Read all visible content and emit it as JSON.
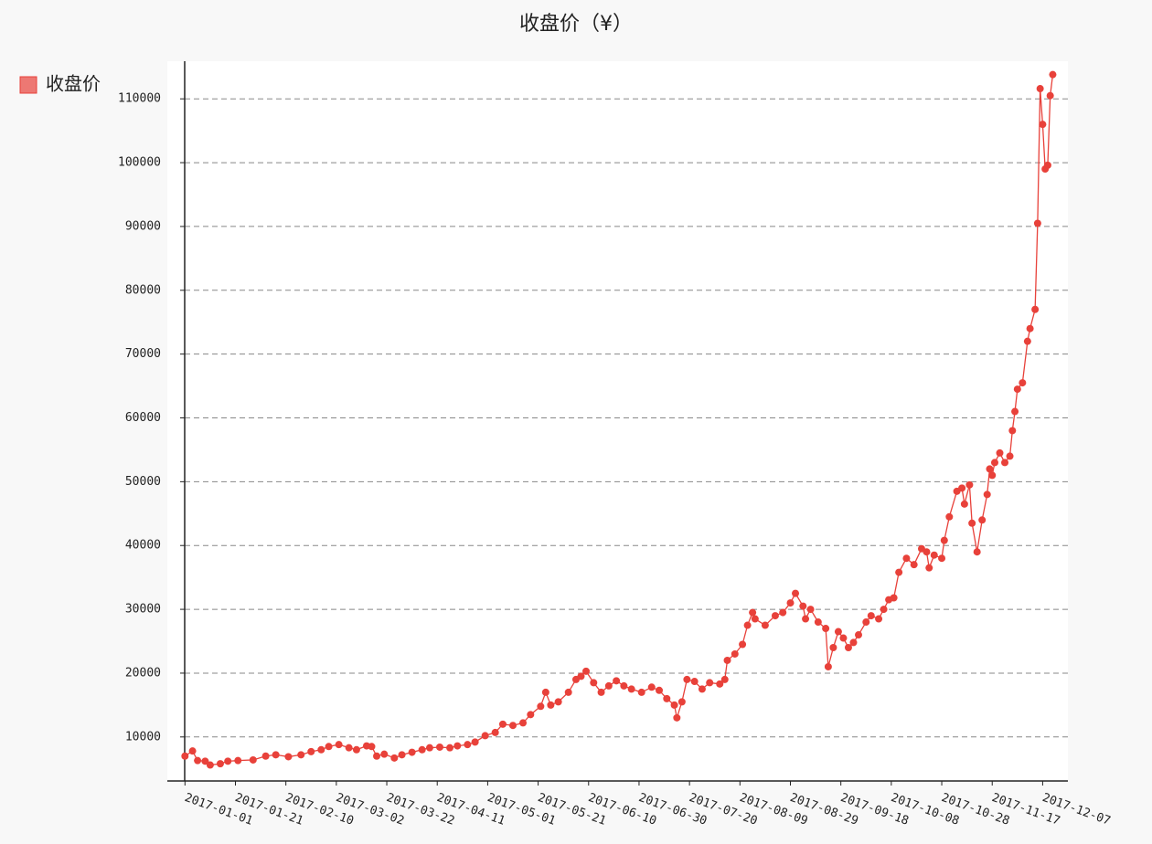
{
  "chart_data": {
    "type": "line",
    "title": "收盘价（¥）",
    "x": [
      "2017-01-01",
      "2017-01-04",
      "2017-01-06",
      "2017-01-09",
      "2017-01-11",
      "2017-01-15",
      "2017-01-18",
      "2017-01-22",
      "2017-01-28",
      "2017-02-02",
      "2017-02-06",
      "2017-02-11",
      "2017-02-16",
      "2017-02-20",
      "2017-02-24",
      "2017-02-27",
      "2017-03-03",
      "2017-03-07",
      "2017-03-10",
      "2017-03-14",
      "2017-03-16",
      "2017-03-18",
      "2017-03-21",
      "2017-03-25",
      "2017-03-28",
      "2017-04-01",
      "2017-04-05",
      "2017-04-08",
      "2017-04-12",
      "2017-04-16",
      "2017-04-19",
      "2017-04-23",
      "2017-04-26",
      "2017-04-30",
      "2017-05-04",
      "2017-05-07",
      "2017-05-11",
      "2017-05-15",
      "2017-05-18",
      "2017-05-22",
      "2017-05-24",
      "2017-05-26",
      "2017-05-29",
      "2017-06-02",
      "2017-06-05",
      "2017-06-07",
      "2017-06-09",
      "2017-06-12",
      "2017-06-15",
      "2017-06-18",
      "2017-06-21",
      "2017-06-24",
      "2017-06-27",
      "2017-07-01",
      "2017-07-05",
      "2017-07-08",
      "2017-07-11",
      "2017-07-14",
      "2017-07-15",
      "2017-07-17",
      "2017-07-19",
      "2017-07-22",
      "2017-07-25",
      "2017-07-28",
      "2017-08-01",
      "2017-08-03",
      "2017-08-04",
      "2017-08-07",
      "2017-08-10",
      "2017-08-12",
      "2017-08-14",
      "2017-08-15",
      "2017-08-19",
      "2017-08-23",
      "2017-08-26",
      "2017-08-29",
      "2017-08-31",
      "2017-09-03",
      "2017-09-04",
      "2017-09-06",
      "2017-09-09",
      "2017-09-12",
      "2017-09-13",
      "2017-09-15",
      "2017-09-17",
      "2017-09-19",
      "2017-09-21",
      "2017-09-23",
      "2017-09-25",
      "2017-09-28",
      "2017-09-30",
      "2017-10-03",
      "2017-10-05",
      "2017-10-07",
      "2017-10-09",
      "2017-10-11",
      "2017-10-14",
      "2017-10-17",
      "2017-10-20",
      "2017-10-22",
      "2017-10-23",
      "2017-10-25",
      "2017-10-28",
      "2017-10-29",
      "2017-10-31",
      "2017-11-03",
      "2017-11-05",
      "2017-11-06",
      "2017-11-08",
      "2017-11-09",
      "2017-11-11",
      "2017-11-13",
      "2017-11-15",
      "2017-11-16",
      "2017-11-17",
      "2017-11-18",
      "2017-11-20",
      "2017-11-22",
      "2017-11-24",
      "2017-11-25",
      "2017-11-26",
      "2017-11-27",
      "2017-11-29",
      "2017-12-01",
      "2017-12-02",
      "2017-12-04",
      "2017-12-05",
      "2017-12-06",
      "2017-12-07",
      "2017-12-08",
      "2017-12-09",
      "2017-12-10",
      "2017-12-11"
    ],
    "series": [
      {
        "name": "收盘价",
        "color": "#e8413a",
        "values": [
          7000,
          7800,
          6300,
          6200,
          5600,
          5800,
          6200,
          6300,
          6400,
          7000,
          7200,
          6900,
          7200,
          7700,
          8000,
          8500,
          8800,
          8300,
          8000,
          8600,
          8500,
          7000,
          7300,
          6700,
          7200,
          7600,
          8000,
          8300,
          8400,
          8300,
          8600,
          8800,
          9200,
          10200,
          10700,
          12000,
          11800,
          12200,
          13500,
          14800,
          17000,
          15000,
          15500,
          17000,
          19000,
          19500,
          20300,
          18500,
          17000,
          18000,
          18800,
          18000,
          17500,
          17000,
          17800,
          17300,
          16000,
          15000,
          13000,
          15500,
          19000,
          18700,
          17500,
          18500,
          18300,
          19000,
          22000,
          23000,
          24500,
          27500,
          29500,
          28500,
          27500,
          29000,
          29500,
          31000,
          32500,
          30500,
          28500,
          30000,
          28000,
          27000,
          21000,
          24000,
          26500,
          25500,
          24000,
          24800,
          26000,
          28000,
          29000,
          28500,
          30000,
          31500,
          31800,
          35800,
          38000,
          37000,
          39500,
          39000,
          36500,
          38500,
          38000,
          40800,
          44500,
          48500,
          49000,
          46500,
          49500,
          43500,
          39000,
          44000,
          48000,
          52000,
          51000,
          53000,
          54500,
          53000,
          54000,
          58000,
          61000,
          64500,
          65500,
          72000,
          74000,
          77000,
          90500,
          111600,
          106000,
          99000,
          99600,
          110500,
          113800
        ]
      }
    ],
    "xlim": [
      "2016-12-25",
      "2017-12-17"
    ],
    "xticks": [
      "2017-01-01",
      "2017-01-21",
      "2017-02-10",
      "2017-03-02",
      "2017-03-22",
      "2017-04-11",
      "2017-05-01",
      "2017-05-21",
      "2017-06-10",
      "2017-06-30",
      "2017-07-20",
      "2017-08-09",
      "2017-08-29",
      "2017-09-18",
      "2017-10-08",
      "2017-10-28",
      "2017-11-17",
      "2017-12-07"
    ],
    "ylim": [
      3100,
      115900
    ],
    "yticks": [
      10000,
      20000,
      30000,
      40000,
      50000,
      60000,
      70000,
      80000,
      90000,
      100000,
      110000
    ],
    "grid": true,
    "legend": "top-left"
  }
}
